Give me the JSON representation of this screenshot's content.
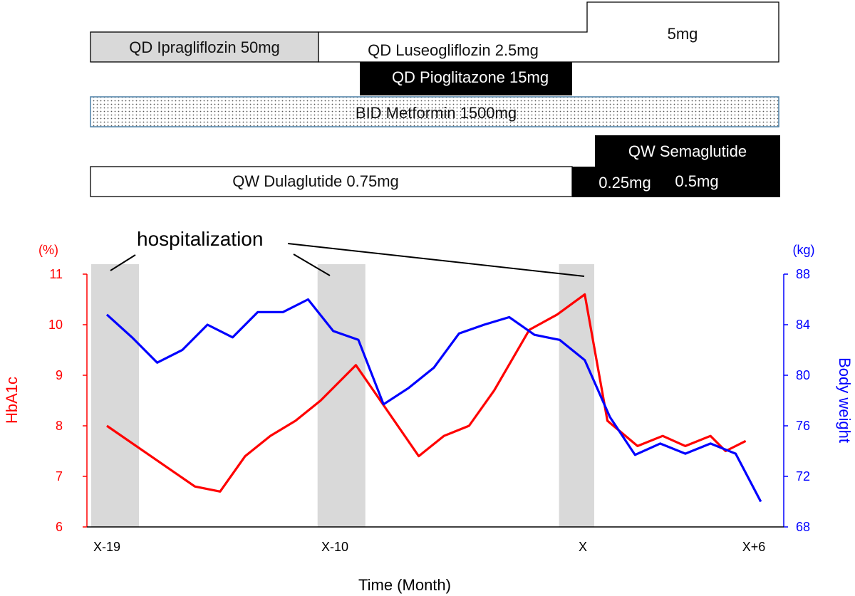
{
  "chart_data": {
    "type": "line",
    "treatment_bars": [
      {
        "id": "ipragliflozin",
        "label": "QD Ipragliflozin 50mg"
      },
      {
        "id": "luseogliflozin",
        "label": "QD Luseogliflozin 2.5mg",
        "label_step_up": "5mg"
      },
      {
        "id": "pioglitazone",
        "label": "QD Pioglitazone 15mg"
      },
      {
        "id": "metformin",
        "label": "BID Metformin 1500mg"
      },
      {
        "id": "dulaglutide",
        "label": "QW Dulaglutide 0.75mg"
      },
      {
        "id": "semaglutide",
        "label": "QW Semaglutide",
        "dose_labels": [
          "0.25mg",
          "0.5mg"
        ]
      }
    ],
    "annotation": {
      "text": "hospitalization"
    },
    "x_tick_labels": [
      "X-19",
      "X-10",
      "X",
      "X+6"
    ],
    "xlabel": "Time (Month)",
    "y_left": {
      "label": "HbA1c",
      "unit": "(%)",
      "ticks": [
        6,
        7,
        8,
        9,
        10,
        11
      ],
      "range": [
        6,
        11
      ],
      "color": "#ff0000"
    },
    "y_right": {
      "label": "Body weight",
      "unit": "(kg)",
      "ticks": [
        68,
        72,
        76,
        80,
        84,
        88
      ],
      "range": [
        68,
        88
      ],
      "color": "#0000ff"
    },
    "hospitalization_periods": [
      [
        -19,
        -17.1
      ],
      [
        -10,
        -8.1
      ],
      [
        -0.4,
        1
      ]
    ],
    "series": [
      {
        "name": "HbA1c",
        "axis": "left",
        "color": "#ff0000",
        "x": [
          -19,
          -15.5,
          -14.5,
          -13.5,
          -12.5,
          -11.5,
          -10.5,
          -9.1,
          -6.6,
          -5.6,
          -4.6,
          -3.6,
          -2.2,
          -1.1,
          0,
          0.9,
          2.1,
          3.1,
          4,
          5,
          5.6,
          6.4
        ],
        "y": [
          8.0,
          6.8,
          6.7,
          7.4,
          7.8,
          8.1,
          8.5,
          9.2,
          7.4,
          7.8,
          8.0,
          8.7,
          9.9,
          10.2,
          10.6,
          8.1,
          7.6,
          7.8,
          7.6,
          7.8,
          7.5,
          7.7
        ]
      },
      {
        "name": "Body weight",
        "axis": "right",
        "color": "#0000ff",
        "x": [
          -19,
          -18,
          -17,
          -16,
          -15,
          -14,
          -13,
          -12,
          -11,
          -10,
          -9,
          -8,
          -7,
          -6,
          -5,
          -4,
          -3,
          -2,
          -1,
          0,
          1,
          2,
          3,
          4,
          5,
          6,
          7
        ],
        "y": [
          84.8,
          83.0,
          81.0,
          82.0,
          84.0,
          83.0,
          85.0,
          85.0,
          86.0,
          83.5,
          82.8,
          77.7,
          79.0,
          80.6,
          83.3,
          84.0,
          84.6,
          83.2,
          82.8,
          81.2,
          76.7,
          73.7,
          74.6,
          73.8,
          74.6,
          73.8,
          70.0
        ]
      }
    ]
  }
}
